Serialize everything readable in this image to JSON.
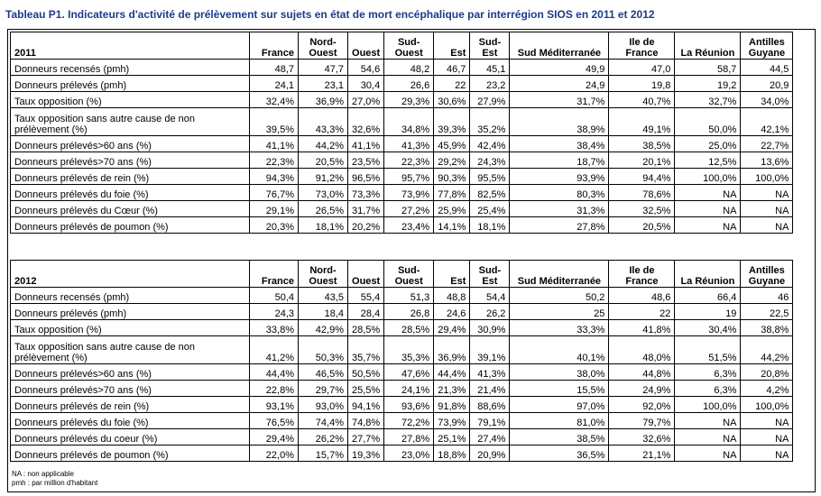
{
  "title": "Tableau P1. Indicateurs d'activité de prélèvement sur sujets en état de mort encéphalique par interrégion SIOS en 2011  et 2012",
  "columns": [
    "France",
    "Nord-Ouest",
    "Ouest",
    "Sud-Ouest",
    "Est",
    "Sud-Est",
    "Sud Méditerranée",
    "Ile de France",
    "La Réunion",
    "Antilles Guyane"
  ],
  "tables": [
    {
      "year": "2011",
      "rows": [
        {
          "label": "Donneurs recensés (pmh)",
          "values": [
            "48,7",
            "47,7",
            "54,6",
            "48,2",
            "46,7",
            "45,1",
            "49,9",
            "47,0",
            "58,7",
            "44,5"
          ]
        },
        {
          "label": "Donneurs prélevés (pmh)",
          "values": [
            "24,1",
            "23,1",
            "30,4",
            "26,6",
            "22",
            "23,2",
            "24,9",
            "19,8",
            "19,2",
            "20,9"
          ]
        },
        {
          "label": "Taux opposition (%)",
          "values": [
            "32,4%",
            "36,9%",
            "27,0%",
            "29,3%",
            "30,6%",
            "27,9%",
            "31,7%",
            "40,7%",
            "32,7%",
            "34,0%"
          ]
        },
        {
          "label": "Taux opposition sans autre cause de non prélèvement (%)",
          "values": [
            "39,5%",
            "43,3%",
            "32,6%",
            "34,8%",
            "39,3%",
            "35,2%",
            "38,9%",
            "49,1%",
            "50,0%",
            "42,1%"
          ]
        },
        {
          "label": "Donneurs prélevés>60 ans (%)",
          "values": [
            "41,1%",
            "44,2%",
            "41,1%",
            "41,3%",
            "45,9%",
            "42,4%",
            "38,4%",
            "38,5%",
            "25,0%",
            "22,7%"
          ]
        },
        {
          "label": "Donneurs prélevés>70 ans (%)",
          "values": [
            "22,3%",
            "20,5%",
            "23,5%",
            "22,3%",
            "29,2%",
            "24,3%",
            "18,7%",
            "20,1%",
            "12,5%",
            "13,6%"
          ]
        },
        {
          "label": "Donneurs prélevés de rein (%)",
          "values": [
            "94,3%",
            "91,2%",
            "96,5%",
            "95,7%",
            "90,3%",
            "95,5%",
            "93,9%",
            "94,4%",
            "100,0%",
            "100,0%"
          ]
        },
        {
          "label": "Donneurs prélevés du foie (%)",
          "values": [
            "76,7%",
            "73,0%",
            "73,3%",
            "73,9%",
            "77,8%",
            "82,5%",
            "80,3%",
            "78,6%",
            "NA",
            "NA"
          ]
        },
        {
          "label": "Donneurs prélevés du Cœur (%)",
          "values": [
            "29,1%",
            "26,5%",
            "31,7%",
            "27,2%",
            "25,9%",
            "25,4%",
            "31,3%",
            "32,5%",
            "NA",
            "NA"
          ]
        },
        {
          "label": "Donneurs prélevés de poumon (%)",
          "values": [
            "20,3%",
            "18,1%",
            "20,2%",
            "23,4%",
            "14,1%",
            "18,1%",
            "27,8%",
            "20,5%",
            "NA",
            "NA"
          ]
        }
      ]
    },
    {
      "year": "2012",
      "rows": [
        {
          "label": "Donneurs recensés (pmh)",
          "values": [
            "50,4",
            "43,5",
            "55,4",
            "51,3",
            "48,8",
            "54,4",
            "50,2",
            "48,6",
            "66,4",
            "46"
          ]
        },
        {
          "label": "Donneurs prélevés (pmh)",
          "values": [
            "24,3",
            "18,4",
            "28,4",
            "26,8",
            "24,6",
            "26,2",
            "25",
            "22",
            "19",
            "22,5"
          ]
        },
        {
          "label": "Taux opposition (%)",
          "values": [
            "33,8%",
            "42,9%",
            "28,5%",
            "28,5%",
            "29,4%",
            "30,9%",
            "33,3%",
            "41,8%",
            "30,4%",
            "38,8%"
          ]
        },
        {
          "label": "Taux opposition sans autre cause de non prélèvement (%)",
          "values": [
            "41,2%",
            "50,3%",
            "35,7%",
            "35,3%",
            "36,9%",
            "39,1%",
            "40,1%",
            "48,0%",
            "51,5%",
            "44,2%"
          ]
        },
        {
          "label": "Donneurs prélevés>60 ans (%)",
          "values": [
            "44,4%",
            "46,5%",
            "50,5%",
            "47,6%",
            "44,4%",
            "41,3%",
            "38,0%",
            "44,8%",
            "6,3%",
            "20,8%"
          ]
        },
        {
          "label": "Donneurs prélevés>70 ans (%)",
          "values": [
            "22,8%",
            "29,7%",
            "25,5%",
            "24,1%",
            "21,3%",
            "21,4%",
            "15,5%",
            "24,9%",
            "6,3%",
            "4,2%"
          ]
        },
        {
          "label": "Donneurs prélevés de rein (%)",
          "values": [
            "93,1%",
            "93,0%",
            "94,1%",
            "93,6%",
            "91,8%",
            "88,6%",
            "97,0%",
            "92,0%",
            "100,0%",
            "100,0%"
          ]
        },
        {
          "label": "Donneurs prélevés du foie (%)",
          "values": [
            "76,5%",
            "74,4%",
            "74,8%",
            "72,2%",
            "73,9%",
            "79,1%",
            "81,0%",
            "79,7%",
            "NA",
            "NA"
          ]
        },
        {
          "label": "Donneurs prélevés du coeur (%)",
          "values": [
            "29,4%",
            "26,2%",
            "27,7%",
            "27,8%",
            "25,1%",
            "27,4%",
            "38,5%",
            "32,6%",
            "NA",
            "NA"
          ]
        },
        {
          "label": "Donneurs prélevés de poumon (%)",
          "values": [
            "22,0%",
            "15,7%",
            "19,3%",
            "23,0%",
            "18,8%",
            "20,9%",
            "36,5%",
            "21,1%",
            "NA",
            "NA"
          ]
        }
      ]
    }
  ],
  "notes": [
    "NA : non applicable",
    "pmh : par million d'habitant"
  ]
}
